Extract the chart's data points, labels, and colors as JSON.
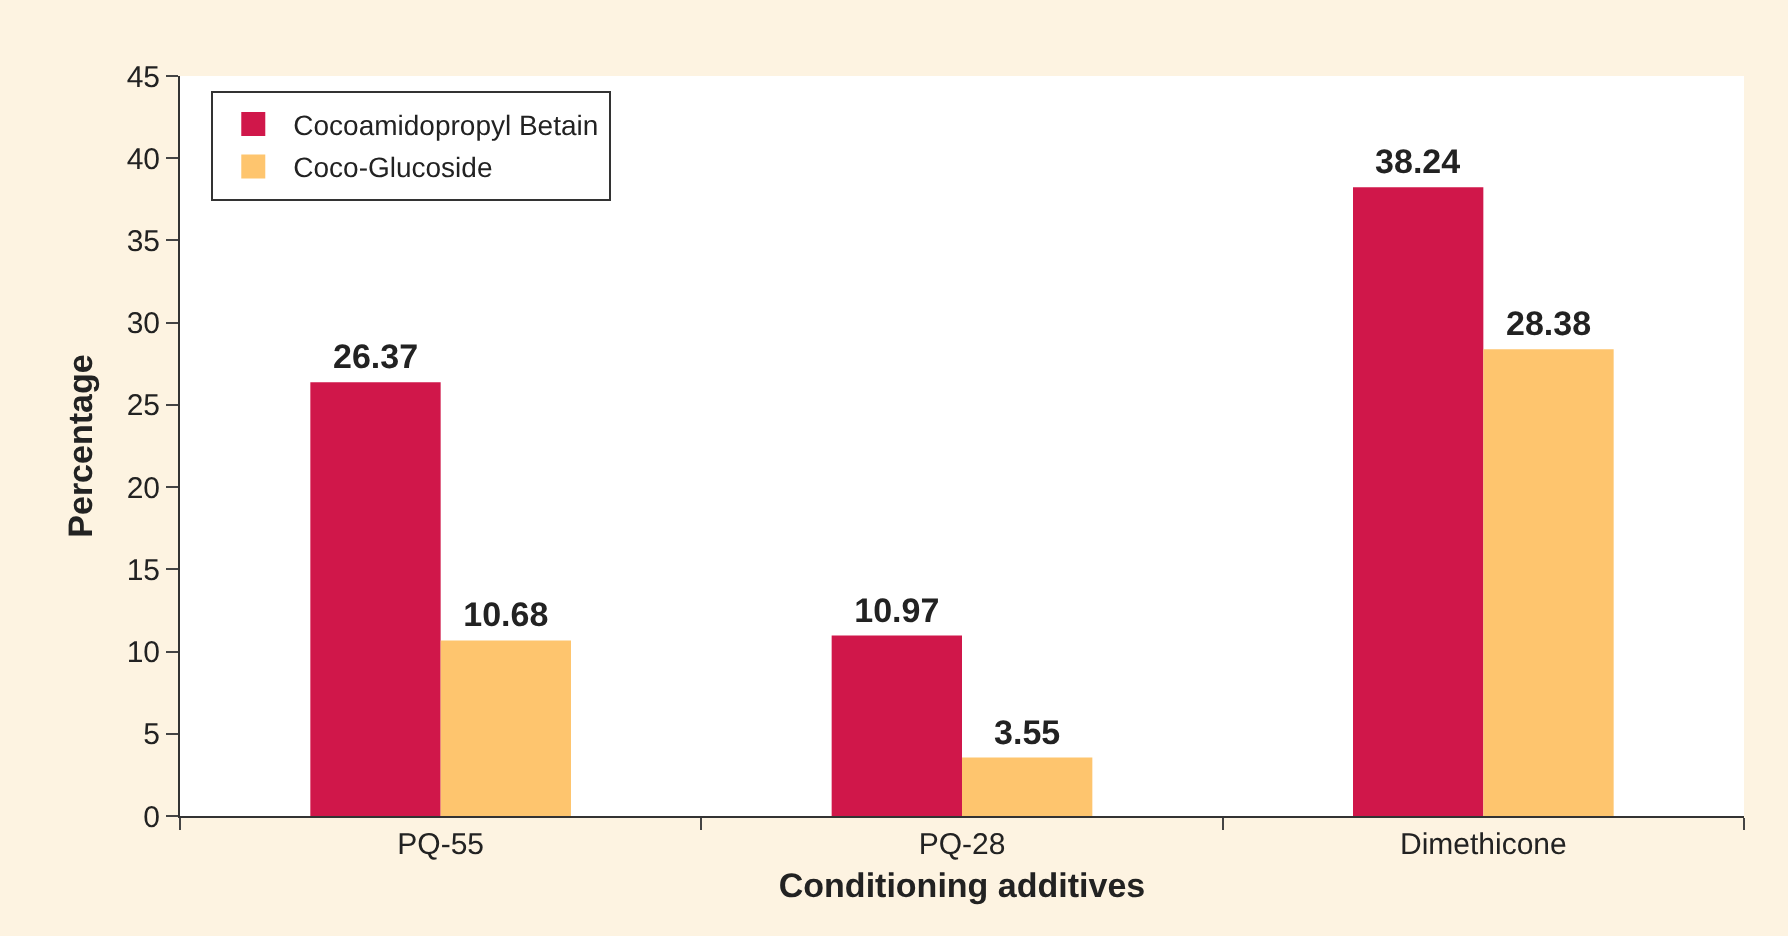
{
  "chart_data": {
    "type": "bar",
    "xlabel": "Conditioning additives",
    "ylabel": "Percentage",
    "categories": [
      "PQ-55",
      "PQ-28",
      "Dimethicone"
    ],
    "series": [
      {
        "name": "Cocoamidopropyl Betain",
        "color": "#d0174a",
        "values": [
          26.37,
          10.97,
          38.24
        ]
      },
      {
        "name": "Coco-Glucoside",
        "color": "#fec56e",
        "values": [
          10.68,
          3.55,
          28.38
        ]
      }
    ],
    "ylim": [
      0,
      45
    ],
    "yticks": [
      0,
      5,
      10,
      15,
      20,
      25,
      30,
      35,
      40,
      45
    ],
    "data_labels": true,
    "grid": false,
    "legend": "top left"
  }
}
